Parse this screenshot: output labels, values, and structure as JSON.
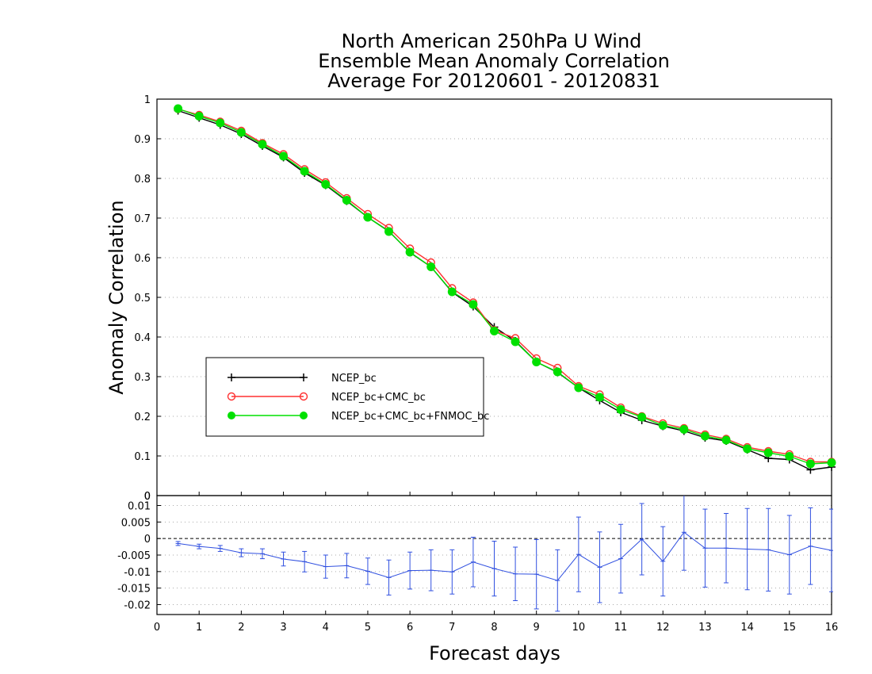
{
  "chart_data": [
    {
      "type": "line",
      "title_lines": [
        "North American 250hPa U Wind",
        "Ensemble Mean Anomaly Correlation",
        "Average For 20120601 - 20120831"
      ],
      "ylabel": "Anomaly Correlation",
      "ylim": [
        0,
        1
      ],
      "yticks": [
        "0",
        "0.1",
        "0.2",
        "0.3",
        "0.4",
        "0.5",
        "0.6",
        "0.7",
        "0.8",
        "0.9",
        "1"
      ],
      "grid": "horizontal dotted",
      "legend_placement": "left-middle",
      "x": [
        0.5,
        1,
        1.5,
        2,
        2.5,
        3,
        3.5,
        4,
        4.5,
        5,
        5.5,
        6,
        6.5,
        7,
        7.5,
        8,
        8.5,
        9,
        9.5,
        10,
        10.5,
        11,
        11.5,
        12,
        12.5,
        13,
        13.5,
        14,
        14.5,
        15,
        15.5,
        16
      ],
      "series": [
        {
          "name": "NCEP_bc",
          "color": "#000000",
          "marker": "plus",
          "values": [
            0.971,
            0.953,
            0.935,
            0.912,
            0.882,
            0.853,
            0.814,
            0.783,
            0.743,
            0.702,
            0.667,
            0.613,
            0.577,
            0.513,
            0.477,
            0.425,
            0.39,
            0.337,
            0.311,
            0.272,
            0.24,
            0.21,
            0.19,
            0.175,
            0.163,
            0.146,
            0.138,
            0.116,
            0.094,
            0.091,
            0.065,
            0.072
          ]
        },
        {
          "name": "NCEP_bc+CMC_bc",
          "color": "#ff3030",
          "marker": "open-circle",
          "values": [
            0.975,
            0.96,
            0.943,
            0.92,
            0.889,
            0.861,
            0.823,
            0.79,
            0.75,
            0.71,
            0.675,
            0.623,
            0.588,
            0.523,
            0.487,
            0.417,
            0.397,
            0.346,
            0.322,
            0.276,
            0.255,
            0.222,
            0.2,
            0.182,
            0.17,
            0.154,
            0.143,
            0.122,
            0.112,
            0.104,
            0.085,
            0.085
          ]
        },
        {
          "name": "NCEP_bc+CMC_bc+FNMOC_bc",
          "color": "#00e000",
          "marker": "filled-circle",
          "values": [
            0.976,
            0.957,
            0.94,
            0.916,
            0.886,
            0.856,
            0.818,
            0.785,
            0.745,
            0.702,
            0.666,
            0.614,
            0.577,
            0.514,
            0.482,
            0.415,
            0.388,
            0.337,
            0.312,
            0.272,
            0.248,
            0.217,
            0.198,
            0.177,
            0.167,
            0.15,
            0.14,
            0.118,
            0.108,
            0.099,
            0.08,
            0.083
          ]
        }
      ]
    },
    {
      "type": "line",
      "subtype": "difference-with-error-bars",
      "xlabel": "Forecast days",
      "xlim": [
        0,
        16
      ],
      "xticks": [
        "0",
        "1",
        "2",
        "3",
        "4",
        "5",
        "6",
        "7",
        "8",
        "9",
        "10",
        "11",
        "12",
        "13",
        "14",
        "15",
        "16"
      ],
      "ylim": [
        -0.023,
        0.013
      ],
      "yticks": [
        "0.01",
        "0.005",
        "0",
        "-0.005",
        "-0.01",
        "-0.015",
        "-0.02"
      ],
      "ytick_values": [
        0.01,
        0.005,
        0,
        -0.005,
        -0.01,
        -0.015,
        -0.02
      ],
      "top_label": "0",
      "grid": "horizontal dotted",
      "reference_line": 0,
      "color": "#3050e0",
      "x": [
        0.5,
        1,
        1.5,
        2,
        2.5,
        3,
        3.5,
        4,
        4.5,
        5,
        5.5,
        6,
        6.5,
        7,
        7.5,
        8,
        8.5,
        9,
        9.5,
        10,
        10.5,
        11,
        11.5,
        12,
        12.5,
        13,
        13.5,
        14,
        14.5,
        15,
        15.5,
        16
      ],
      "values": [
        -0.0015,
        -0.0024,
        -0.003,
        -0.0043,
        -0.0046,
        -0.0062,
        -0.007,
        -0.0085,
        -0.0082,
        -0.0099,
        -0.0118,
        -0.0097,
        -0.0096,
        -0.0101,
        -0.0071,
        -0.0091,
        -0.0107,
        -0.0108,
        -0.0127,
        -0.0048,
        -0.0087,
        -0.0061,
        -0.0002,
        -0.0069,
        0.0019,
        -0.0029,
        -0.0029,
        -0.0032,
        -0.0034,
        -0.0049,
        -0.0023,
        -0.0036
      ],
      "errors": [
        0.0006,
        0.0007,
        0.0009,
        0.0012,
        0.0015,
        0.0021,
        0.0031,
        0.0035,
        0.0037,
        0.004,
        0.0053,
        0.0056,
        0.0062,
        0.0067,
        0.0075,
        0.0083,
        0.0081,
        0.0105,
        0.0093,
        0.0113,
        0.0107,
        0.0104,
        0.0108,
        0.0105,
        0.0115,
        0.0118,
        0.0105,
        0.0123,
        0.0125,
        0.0119,
        0.0116,
        0.0125
      ]
    }
  ]
}
